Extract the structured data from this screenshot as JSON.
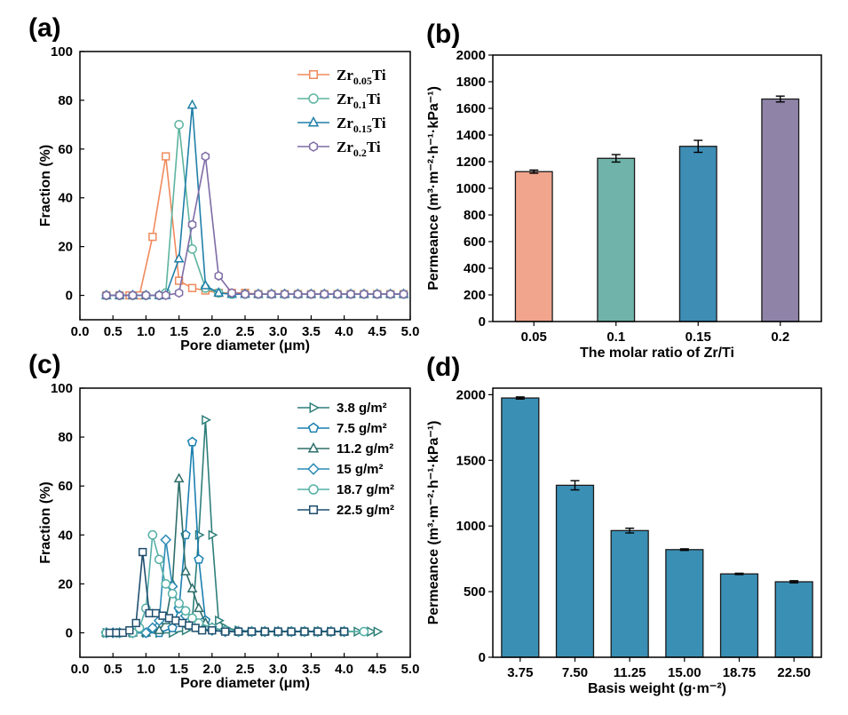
{
  "chart_data": [
    {
      "panel_label": "(a)",
      "type": "line",
      "xlabel": "Pore diameter (μm)",
      "ylabel": "Fraction (%)",
      "xlim": [
        0.0,
        5.0
      ],
      "ylim": [
        -10,
        100
      ],
      "xticks": [
        "0.0",
        "0.5",
        "1.0",
        "1.5",
        "2.0",
        "2.5",
        "3.0",
        "3.5",
        "4.0",
        "4.5",
        "5.0"
      ],
      "yticks": [
        "0",
        "20",
        "40",
        "60",
        "80",
        "100"
      ],
      "legend_position": "top-right",
      "series": [
        {
          "name": "Zr0.05Ti",
          "name_base": "Zr",
          "name_sub": "0.05",
          "name_tail": "Ti",
          "color": "#F08A5D",
          "marker": "square",
          "x": [
            0.4,
            0.6,
            0.75,
            0.9,
            1.1,
            1.3,
            1.5,
            1.7,
            1.9,
            2.1,
            2.3,
            2.5,
            2.7,
            2.9,
            3.1,
            3.3,
            3.5,
            3.7,
            3.9,
            4.1,
            4.3,
            4.5,
            4.7,
            4.9
          ],
          "y": [
            0,
            0,
            0,
            0,
            24,
            57,
            6,
            3,
            2,
            1,
            1,
            1,
            0.5,
            0.5,
            0.5,
            0.5,
            0.5,
            0.5,
            0.5,
            0.5,
            0.5,
            0.5,
            0.5,
            0.5
          ]
        },
        {
          "name": "Zr0.1Ti",
          "name_base": "Zr",
          "name_sub": "0.1",
          "name_tail": "Ti",
          "color": "#5DB4A0",
          "marker": "circle",
          "x": [
            0.4,
            0.6,
            0.8,
            1.0,
            1.2,
            1.3,
            1.5,
            1.7,
            1.9,
            2.1,
            2.3,
            2.5,
            2.7,
            2.9,
            3.1,
            3.3,
            3.5,
            3.7,
            3.9,
            4.1,
            4.3,
            4.5,
            4.7,
            4.9
          ],
          "y": [
            0,
            0,
            0,
            0,
            0,
            1,
            70,
            19,
            3,
            1,
            0.5,
            0.5,
            0.5,
            0.5,
            0.5,
            0.5,
            0.5,
            0.5,
            0.5,
            0.5,
            0.5,
            0.5,
            0.5,
            0.5
          ]
        },
        {
          "name": "Zr0.15Ti",
          "name_base": "Zr",
          "name_sub": "0.15",
          "name_tail": "Ti",
          "color": "#1F7FA8",
          "marker": "triangle-up",
          "x": [
            0.4,
            0.6,
            0.8,
            1.0,
            1.2,
            1.3,
            1.5,
            1.7,
            1.9,
            2.1,
            2.3,
            2.5,
            2.7,
            2.9,
            3.1,
            3.3,
            3.5,
            3.7,
            3.9,
            4.1,
            4.3,
            4.5,
            4.7,
            4.9
          ],
          "y": [
            0,
            0,
            0,
            0,
            0,
            0,
            15,
            78,
            4,
            1,
            0.5,
            0.5,
            0.5,
            0.5,
            0.5,
            0.5,
            0.5,
            0.5,
            0.5,
            0.5,
            0.5,
            0.5,
            0.5,
            0.5
          ]
        },
        {
          "name": "Zr0.2Ti",
          "name_base": "Zr",
          "name_sub": "0.2",
          "name_tail": "Ti",
          "color": "#7E6BA6",
          "marker": "hexagon",
          "x": [
            0.4,
            0.6,
            0.8,
            1.0,
            1.2,
            1.3,
            1.5,
            1.7,
            1.9,
            2.1,
            2.3,
            2.5,
            2.7,
            2.9,
            3.1,
            3.3,
            3.5,
            3.7,
            3.9,
            4.1,
            4.3,
            4.5,
            4.7,
            4.9
          ],
          "y": [
            0,
            0,
            0,
            0,
            0,
            0,
            1,
            29,
            57,
            8,
            1,
            0.5,
            0.5,
            0.5,
            0.5,
            0.5,
            0.5,
            0.5,
            0.5,
            0.5,
            0.5,
            0.5,
            0.5,
            0.5
          ]
        }
      ]
    },
    {
      "panel_label": "(b)",
      "type": "bar",
      "xlabel": "The molar ratio of Zr/Ti",
      "ylabel": "Permeance (m³·m⁻²·h⁻¹·kPa⁻¹)",
      "ylim": [
        0,
        2000
      ],
      "yticks": [
        "0",
        "200",
        "400",
        "600",
        "800",
        "1000",
        "1200",
        "1400",
        "1600",
        "1800",
        "2000"
      ],
      "categories": [
        "0.05",
        "0.1",
        "0.15",
        "0.2"
      ],
      "values": [
        1125,
        1225,
        1315,
        1670
      ],
      "errors": [
        12,
        28,
        45,
        22
      ],
      "colors": [
        "#F0A58C",
        "#6FB3AA",
        "#3E8DB5",
        "#8F84A8"
      ]
    },
    {
      "panel_label": "(c)",
      "type": "line",
      "xlabel": "Pore diameter (μm)",
      "ylabel": "Fraction (%)",
      "xlim": [
        0.0,
        5.0
      ],
      "ylim": [
        -10,
        100
      ],
      "xticks": [
        "0.0",
        "0.5",
        "1.0",
        "1.5",
        "2.0",
        "2.5",
        "3.0",
        "3.5",
        "4.0",
        "4.5",
        "5.0"
      ],
      "yticks": [
        "0",
        "20",
        "40",
        "60",
        "80",
        "100"
      ],
      "legend_position": "top-right",
      "series": [
        {
          "name": "3.8 g/m²",
          "color": "#2E7F7A",
          "marker": "triangle-right",
          "x": [
            0.4,
            0.6,
            0.8,
            1.0,
            1.2,
            1.4,
            1.6,
            1.7,
            1.8,
            1.9,
            2.0,
            2.1,
            2.2,
            2.4,
            2.6,
            2.8,
            3.0,
            3.2,
            3.4,
            3.6,
            3.8,
            4.0,
            4.2,
            4.4,
            4.5
          ],
          "y": [
            0,
            0,
            0,
            0,
            0,
            0,
            1,
            5,
            40,
            87,
            40,
            5,
            2,
            1,
            0.5,
            0.5,
            0.5,
            0.5,
            0.5,
            0.5,
            0.5,
            0.5,
            0.5,
            0.5,
            0.5
          ]
        },
        {
          "name": "7.5 g/m²",
          "color": "#1A7FB0",
          "marker": "pentagon",
          "x": [
            0.4,
            0.6,
            0.8,
            1.0,
            1.2,
            1.4,
            1.5,
            1.6,
            1.7,
            1.8,
            1.9,
            2.0,
            2.2,
            2.4,
            2.6,
            2.8,
            3.0,
            3.2,
            3.4,
            3.6,
            3.8,
            4.0
          ],
          "y": [
            0,
            0,
            0,
            0,
            0,
            2,
            10,
            40,
            78,
            30,
            5,
            2,
            1,
            0.5,
            0.5,
            0.5,
            0.5,
            0.5,
            0.5,
            0.5,
            0.5,
            0.5
          ]
        },
        {
          "name": "11.2 g/m²",
          "color": "#2E6E6A",
          "marker": "triangle-up",
          "x": [
            0.4,
            0.6,
            0.8,
            1.0,
            1.2,
            1.3,
            1.4,
            1.5,
            1.6,
            1.7,
            1.8,
            1.9,
            2.0,
            2.2,
            2.4,
            2.6,
            2.8,
            3.0,
            3.2,
            3.4,
            3.6,
            3.8,
            4.0
          ],
          "y": [
            0,
            0,
            0,
            0,
            1,
            5,
            20,
            63,
            25,
            18,
            10,
            4,
            2,
            1,
            0.5,
            0.5,
            0.5,
            0.5,
            0.5,
            0.5,
            0.5,
            0.5,
            0.5
          ]
        },
        {
          "name": "15 g/m²",
          "color": "#2A8BB5",
          "marker": "diamond",
          "x": [
            0.4,
            0.5,
            0.6,
            0.8,
            1.0,
            1.1,
            1.2,
            1.3,
            1.4,
            1.5,
            1.6,
            1.7,
            1.8,
            2.0,
            2.2,
            2.4,
            2.6,
            2.8,
            3.0,
            3.2,
            3.4,
            3.6,
            3.8,
            4.0
          ],
          "y": [
            0,
            0,
            0,
            0,
            0,
            2,
            5,
            38,
            19,
            10,
            7,
            4,
            2,
            1,
            0.5,
            0.5,
            0.5,
            0.5,
            0.5,
            0.5,
            0.5,
            0.5,
            0.5,
            0.5
          ]
        },
        {
          "name": "18.7 g/m²",
          "color": "#55B0A6",
          "marker": "circle",
          "x": [
            0.4,
            0.6,
            0.8,
            0.9,
            1.0,
            1.1,
            1.2,
            1.3,
            1.4,
            1.5,
            1.6,
            1.7,
            1.8,
            2.0,
            2.2,
            2.4,
            2.6,
            2.8,
            3.0,
            3.2,
            3.4,
            3.6,
            3.8,
            4.0,
            4.3
          ],
          "y": [
            0,
            0,
            0,
            2,
            10,
            40,
            30,
            20,
            16,
            12,
            9,
            6,
            4,
            2,
            1,
            0.5,
            0.5,
            0.5,
            0.5,
            0.5,
            0.5,
            0.5,
            0.5,
            0.5,
            0.5
          ]
        },
        {
          "name": "22.5 g/m²",
          "color": "#1F4E6E",
          "marker": "square",
          "x": [
            0.45,
            0.55,
            0.65,
            0.75,
            0.85,
            0.95,
            1.05,
            1.15,
            1.25,
            1.35,
            1.45,
            1.55,
            1.65,
            1.75,
            1.85,
            2.0,
            2.2,
            2.4,
            2.6,
            2.8,
            3.0,
            3.2,
            3.4,
            3.6,
            3.8,
            4.0
          ],
          "y": [
            0,
            0,
            0,
            1,
            4,
            33,
            8,
            8,
            7,
            6,
            5,
            4,
            3,
            2,
            1,
            1,
            0.5,
            0.5,
            0.5,
            0.5,
            0.5,
            0.5,
            0.5,
            0.5,
            0.5,
            0.5
          ]
        }
      ]
    },
    {
      "panel_label": "(d)",
      "type": "bar",
      "xlabel": "Basis weight (g·m⁻²)",
      "ylabel": "Permeance (m³·m⁻²·h⁻¹·kPa⁻¹)",
      "ylim": [
        0,
        2050
      ],
      "yticks": [
        "0",
        "500",
        "1000",
        "1500",
        "2000"
      ],
      "ytick_values": [
        0,
        500,
        1000,
        1500,
        2000
      ],
      "categories": [
        "3.75",
        "7.50",
        "11.25",
        "15.00",
        "18.75",
        "22.50"
      ],
      "values": [
        1975,
        1310,
        965,
        820,
        635,
        575
      ],
      "errors": [
        8,
        35,
        18,
        6,
        5,
        8
      ],
      "color": "#3A8FB5"
    }
  ],
  "colors": {
    "axis": "#000000",
    "background": "#ffffff"
  }
}
